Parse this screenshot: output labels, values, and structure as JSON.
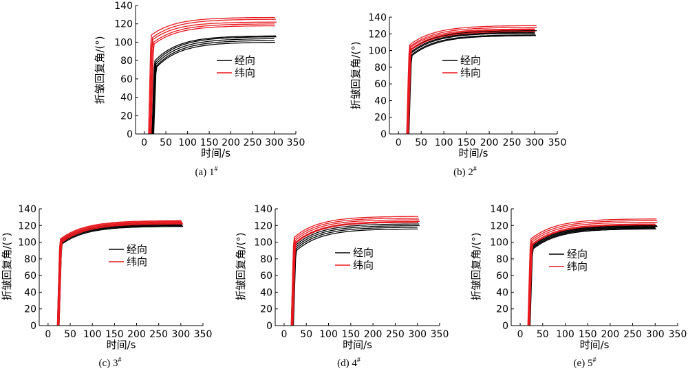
{
  "figure": {
    "legend_labels": [
      "经向",
      "纬向"
    ],
    "colors": {
      "warp": "#000000",
      "weft": "#e8191f",
      "axis": "#000000"
    }
  },
  "chart_data": [
    {
      "type": "line",
      "caption": "(a) 1",
      "caption_sup": "#",
      "xlabel": "时间/s",
      "ylabel": "折皱回复角/(°)",
      "xlim": [
        -20,
        350
      ],
      "ylim": [
        0,
        140
      ],
      "xticks": [
        0,
        50,
        100,
        150,
        200,
        250,
        300,
        350
      ],
      "yticks": [
        0,
        20,
        40,
        60,
        80,
        100,
        120,
        140
      ],
      "legend": [
        "经向",
        "纬向"
      ],
      "series": [
        {
          "name": "经向",
          "curves": [
            {
              "t0": 18,
              "final": 107,
              "knee": 80
            },
            {
              "t0": 19,
              "final": 106,
              "knee": 78
            },
            {
              "t0": 20,
              "final": 104,
              "knee": 76
            },
            {
              "t0": 21,
              "final": 102,
              "knee": 74
            },
            {
              "t0": 22,
              "final": 100,
              "knee": 73
            }
          ]
        },
        {
          "name": "纬向",
          "curves": [
            {
              "t0": 10,
              "final": 127,
              "knee": 108
            },
            {
              "t0": 12,
              "final": 125,
              "knee": 105
            },
            {
              "t0": 13,
              "final": 122,
              "knee": 103
            },
            {
              "t0": 15,
              "final": 120,
              "knee": 100
            },
            {
              "t0": 16,
              "final": 118,
              "knee": 98
            }
          ]
        }
      ]
    },
    {
      "type": "line",
      "caption": "(b) 2",
      "caption_sup": "#",
      "xlabel": "时间/s",
      "ylabel": "折皱回复角/(°)",
      "xlim": [
        -20,
        350
      ],
      "ylim": [
        0,
        140
      ],
      "xticks": [
        0,
        50,
        100,
        150,
        200,
        250,
        300,
        350
      ],
      "yticks": [
        0,
        20,
        40,
        60,
        80,
        100,
        120,
        140
      ],
      "legend": [
        "经向",
        "纬向"
      ],
      "series": [
        {
          "name": "经向",
          "curves": [
            {
              "t0": 19,
              "final": 124,
              "knee": 100
            },
            {
              "t0": 20,
              "final": 122,
              "knee": 98
            },
            {
              "t0": 21,
              "final": 121,
              "knee": 97
            },
            {
              "t0": 22,
              "final": 119,
              "knee": 95
            },
            {
              "t0": 23,
              "final": 118,
              "knee": 94
            }
          ]
        },
        {
          "name": "纬向",
          "curves": [
            {
              "t0": 18,
              "final": 130,
              "knee": 107
            },
            {
              "t0": 19,
              "final": 128,
              "knee": 105
            },
            {
              "t0": 20,
              "final": 126,
              "knee": 104
            },
            {
              "t0": 21,
              "final": 125,
              "knee": 102
            },
            {
              "t0": 22,
              "final": 123,
              "knee": 101
            }
          ]
        }
      ]
    },
    {
      "type": "line",
      "caption": "(c) 3",
      "caption_sup": "#",
      "xlabel": "时间/s",
      "ylabel": "折皱回复角/(°)",
      "xlim": [
        -20,
        350
      ],
      "ylim": [
        0,
        140
      ],
      "xticks": [
        0,
        50,
        100,
        150,
        200,
        250,
        300,
        350
      ],
      "yticks": [
        0,
        20,
        40,
        60,
        80,
        100,
        120,
        140
      ],
      "legend": [
        "经向",
        "纬向"
      ],
      "series": [
        {
          "name": "经向",
          "curves": [
            {
              "t0": 21,
              "final": 123,
              "knee": 102
            },
            {
              "t0": 22,
              "final": 122,
              "knee": 101
            },
            {
              "t0": 23,
              "final": 121,
              "knee": 100
            },
            {
              "t0": 24,
              "final": 120,
              "knee": 99
            },
            {
              "t0": 25,
              "final": 119,
              "knee": 98
            }
          ]
        },
        {
          "name": "纬向",
          "curves": [
            {
              "t0": 21,
              "final": 126,
              "knee": 104
            },
            {
              "t0": 22,
              "final": 125,
              "knee": 103
            },
            {
              "t0": 23,
              "final": 124,
              "knee": 102
            },
            {
              "t0": 24,
              "final": 123,
              "knee": 101
            },
            {
              "t0": 25,
              "final": 122,
              "knee": 100
            }
          ]
        }
      ]
    },
    {
      "type": "line",
      "caption": "(d) 4",
      "caption_sup": "#",
      "xlabel": "时间/s",
      "ylabel": "折皱回复角/(°)",
      "xlim": [
        -20,
        350
      ],
      "ylim": [
        0,
        140
      ],
      "xticks": [
        0,
        50,
        100,
        150,
        200,
        250,
        300,
        350
      ],
      "yticks": [
        0,
        20,
        40,
        60,
        80,
        100,
        120,
        140
      ],
      "legend": [
        "经向",
        "纬向"
      ],
      "series": [
        {
          "name": "经向",
          "curves": [
            {
              "t0": 16,
              "final": 124,
              "knee": 98
            },
            {
              "t0": 18,
              "final": 122,
              "knee": 96
            },
            {
              "t0": 19,
              "final": 120,
              "knee": 94
            },
            {
              "t0": 20,
              "final": 118,
              "knee": 92
            },
            {
              "t0": 21,
              "final": 116,
              "knee": 90
            }
          ]
        },
        {
          "name": "纬向",
          "curves": [
            {
              "t0": 16,
              "final": 131,
              "knee": 106
            },
            {
              "t0": 17,
              "final": 129,
              "knee": 104
            },
            {
              "t0": 18,
              "final": 127,
              "knee": 102
            },
            {
              "t0": 19,
              "final": 125,
              "knee": 100
            },
            {
              "t0": 20,
              "final": 124,
              "knee": 99
            }
          ]
        }
      ]
    },
    {
      "type": "line",
      "caption": "(e) 5",
      "caption_sup": "#",
      "xlabel": "时间/s",
      "ylabel": "折皱回复角/(°)",
      "xlim": [
        -20,
        350
      ],
      "ylim": [
        0,
        140
      ],
      "xticks": [
        0,
        50,
        100,
        150,
        200,
        250,
        300,
        350
      ],
      "yticks": [
        0,
        20,
        40,
        60,
        80,
        100,
        120,
        140
      ],
      "legend": [
        "经向",
        "纬向"
      ],
      "series": [
        {
          "name": "经向",
          "curves": [
            {
              "t0": 18,
              "final": 120,
              "knee": 96
            },
            {
              "t0": 19,
              "final": 119,
              "knee": 95
            },
            {
              "t0": 20,
              "final": 118,
              "knee": 94
            },
            {
              "t0": 21,
              "final": 117,
              "knee": 93
            },
            {
              "t0": 22,
              "final": 116,
              "knee": 92
            }
          ]
        },
        {
          "name": "纬向",
          "curves": [
            {
              "t0": 17,
              "final": 128,
              "knee": 104
            },
            {
              "t0": 18,
              "final": 126,
              "knee": 102
            },
            {
              "t0": 19,
              "final": 124,
              "knee": 100
            },
            {
              "t0": 20,
              "final": 122,
              "knee": 98
            },
            {
              "t0": 21,
              "final": 121,
              "knee": 97
            }
          ]
        }
      ]
    }
  ]
}
